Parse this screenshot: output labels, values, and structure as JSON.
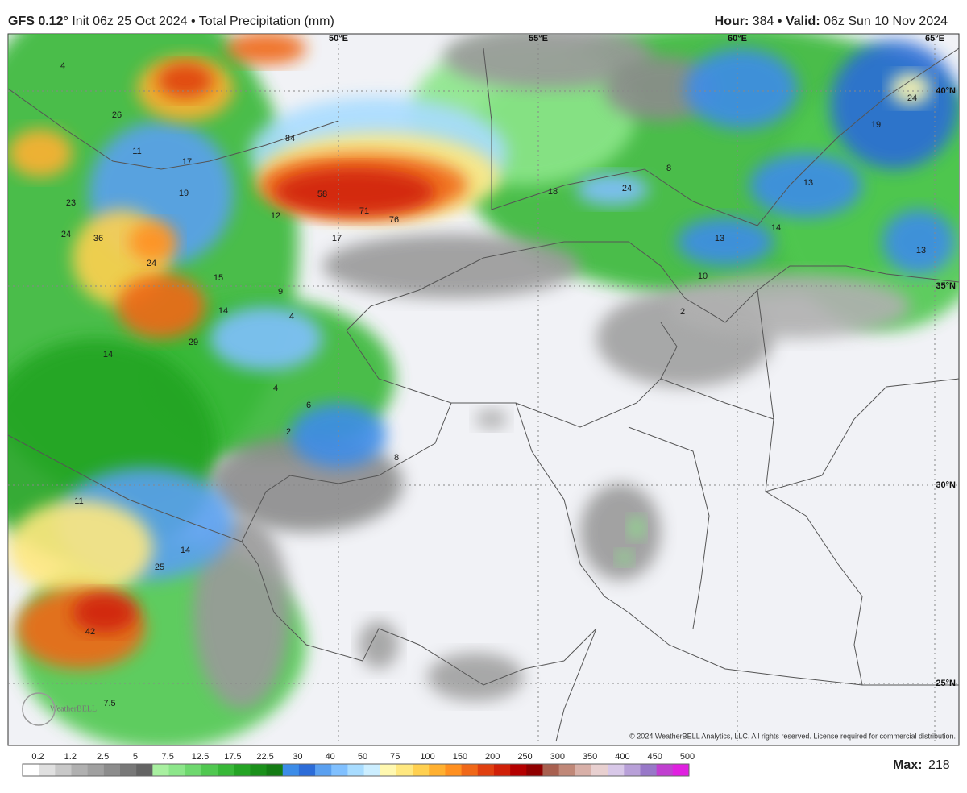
{
  "header": {
    "model": "GFS 0.12°",
    "init": "Init 06z 25 Oct 2024",
    "separator": "•",
    "product": "Total Precipitation (mm)",
    "hour_label": "Hour:",
    "hour": "384",
    "valid_label": "Valid:",
    "valid": "06z Sun 10 Nov 2024"
  },
  "map": {
    "lon_labels": [
      "50°E",
      "55°E",
      "60°E",
      "65°E"
    ],
    "lat_labels": [
      "40°N",
      "35°N",
      "30°N",
      "25°N"
    ],
    "point_labels": [
      4,
      26,
      11,
      17,
      19,
      23,
      84,
      58,
      71,
      76,
      12,
      17,
      24,
      36,
      24,
      15,
      9,
      4,
      14,
      14,
      29,
      4,
      6,
      2,
      8,
      18,
      24,
      8,
      13,
      13,
      14,
      10,
      2,
      19,
      24,
      13,
      11,
      14,
      25,
      42,
      7.5
    ],
    "logo": "WeatherBELL",
    "copyright": "© 2024 WeatherBELL Analytics, LLC. All rights reserved. License required for commercial distribution."
  },
  "legend": {
    "ticks": [
      0.2,
      1.2,
      2.5,
      5,
      7.5,
      12.5,
      17.5,
      22.5,
      30,
      40,
      50,
      75,
      100,
      150,
      200,
      250,
      300,
      350,
      400,
      450,
      500
    ],
    "colors": [
      "#ffffff",
      "#e0e0e0",
      "#c8c8c8",
      "#b0b0b0",
      "#a0a0a0",
      "#8c8c8c",
      "#787878",
      "#646464",
      "#a8f0a0",
      "#8ce68a",
      "#6ed86e",
      "#50c850",
      "#38b838",
      "#24a424",
      "#1a901a",
      "#147c14",
      "#3c8ce8",
      "#2c6cd8",
      "#5aa0f0",
      "#80c0ff",
      "#a8dcff",
      "#cceeff",
      "#fff8b0",
      "#ffe880",
      "#ffd050",
      "#ffb030",
      "#ff9020",
      "#f06818",
      "#e04010",
      "#d02008",
      "#b40000",
      "#900000",
      "#a86050",
      "#c08878",
      "#d8b0a8",
      "#e8d0d0",
      "#d8c8e8",
      "#b8a0d8",
      "#9878c8",
      "#c040d0",
      "#e020e0"
    ],
    "max_label": "Max:",
    "max": 218
  }
}
